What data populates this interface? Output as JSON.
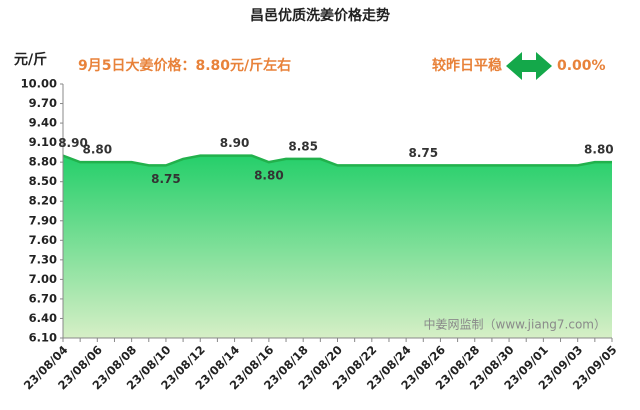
{
  "chart_data": {
    "type": "area",
    "title": "昌邑优质洗姜价格走势",
    "y_unit": "元/斤",
    "annotation": "9月5日大姜价格：8.80元/斤左右",
    "change_label": "较昨日平稳",
    "change_value": "0.00%",
    "watermark": "中姜网监制（www.jiang7.com）",
    "color": "#22b14c",
    "categories": [
      "23/08/04",
      null,
      "23/08/06",
      null,
      "23/08/08",
      null,
      "23/08/10",
      null,
      "23/08/12",
      null,
      "23/08/14",
      null,
      "23/08/16",
      null,
      "23/08/18",
      null,
      "23/08/20",
      null,
      "23/08/22",
      null,
      "23/08/24",
      null,
      "23/08/26",
      null,
      "23/08/28",
      null,
      "23/08/30",
      null,
      "23/09/01",
      null,
      "23/09/03",
      null,
      "23/09/05"
    ],
    "values": [
      8.9,
      8.8,
      8.8,
      8.8,
      8.8,
      8.75,
      8.75,
      8.85,
      8.9,
      8.9,
      8.9,
      8.9,
      8.8,
      8.85,
      8.85,
      8.85,
      8.75,
      8.75,
      8.75,
      8.75,
      8.75,
      8.75,
      8.75,
      8.75,
      8.75,
      8.75,
      8.75,
      8.75,
      8.75,
      8.75,
      8.75,
      8.8,
      8.8
    ],
    "value_labels": [
      "8.90",
      null,
      "8.80",
      null,
      null,
      null,
      "8.75",
      null,
      null,
      null,
      "8.90",
      null,
      "8.80",
      null,
      "8.85",
      null,
      null,
      null,
      null,
      null,
      null,
      "8.75",
      null,
      null,
      null,
      null,
      null,
      null,
      null,
      null,
      null,
      "8.80",
      null
    ],
    "ylim": [
      6.1,
      10.0
    ],
    "yticks": [
      {
        "value": 6.1,
        "label": "6.10"
      },
      {
        "value": 6.4,
        "label": "6.40"
      },
      {
        "value": 6.7,
        "label": "6.70"
      },
      {
        "value": 7.0,
        "label": "7.00"
      },
      {
        "value": 7.3,
        "label": "7.30"
      },
      {
        "value": 7.6,
        "label": "7.60"
      },
      {
        "value": 7.9,
        "label": "7.90"
      },
      {
        "value": 8.2,
        "label": "8.20"
      },
      {
        "value": 8.5,
        "label": "8.50"
      },
      {
        "value": 8.8,
        "label": "8.80"
      },
      {
        "value": 9.1,
        "label": "9.10"
      },
      {
        "value": 9.4,
        "label": "9.40"
      },
      {
        "value": 9.7,
        "label": "9.70"
      },
      {
        "value": 10.0,
        "label": "10.00"
      }
    ],
    "grid": false
  }
}
